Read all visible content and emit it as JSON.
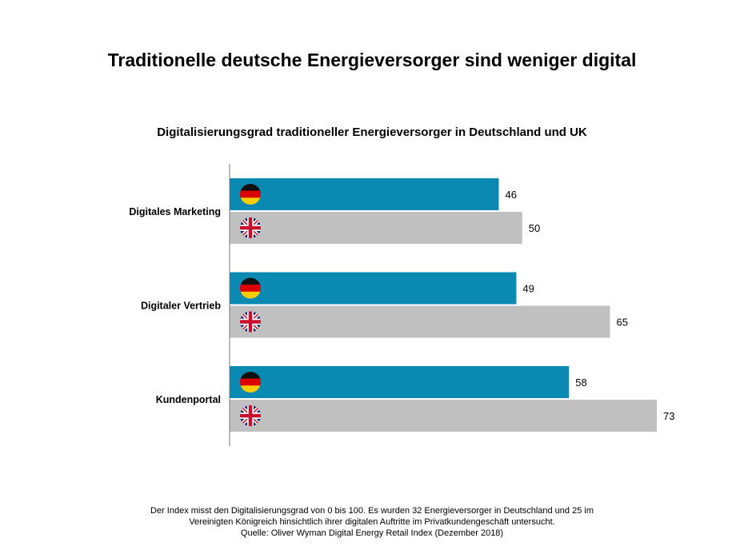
{
  "title": "Traditionelle deutsche Energieversorger sind weniger digital",
  "chart_data": {
    "type": "bar",
    "orientation": "horizontal",
    "title": "Digitalisierungsgrad traditioneller Energieversorger in Deutschland und UK",
    "categories": [
      "Digitales Marketing",
      "Digitaler Vertrieb",
      "Kundenportal"
    ],
    "series": [
      {
        "icon": "germany-flag-icon",
        "color": "#0a8ab2",
        "values": [
          46,
          49,
          58
        ]
      },
      {
        "icon": "uk-flag-icon",
        "color": "#c0c0c0",
        "values": [
          50,
          65,
          73
        ]
      }
    ],
    "xlim": [
      0,
      100
    ],
    "grid": false,
    "data_labels": true
  },
  "footer": {
    "line1": "Der Index misst den Digitalisierungsgrad von 0 bis 100. Es wurden 32 Energieversorger in Deutschland und 25 im",
    "line2": "Vereinigten Königreich hinsichtlich ihrer digitalen Auftritte im Privatkundengeschäft untersucht.",
    "source": "Quelle: Oliver Wyman Digital Energy Retail Index (Dezember 2018)"
  }
}
